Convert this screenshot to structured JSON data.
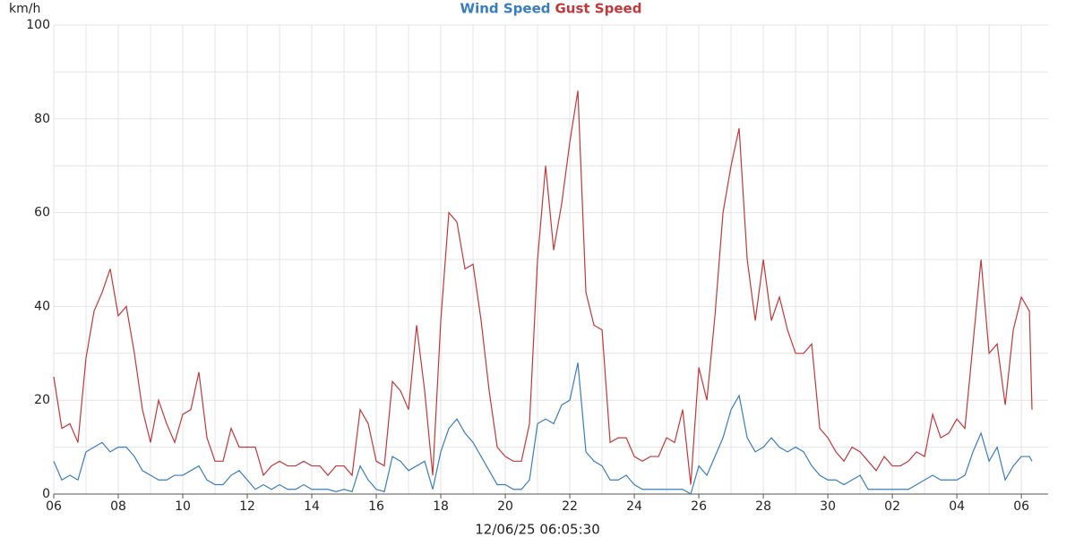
{
  "chart_data": {
    "type": "line",
    "legend": "top",
    "x_label": "12/06/25 06:05:30",
    "y_label": "km/h",
    "grid": true,
    "xlim": [
      0,
      30.83
    ],
    "ylim": [
      0,
      100
    ],
    "xticks": [
      {
        "value": 0,
        "label": "06"
      },
      {
        "value": 2,
        "label": "08"
      },
      {
        "value": 4,
        "label": "10"
      },
      {
        "value": 6,
        "label": "12"
      },
      {
        "value": 8,
        "label": "14"
      },
      {
        "value": 10,
        "label": "16"
      },
      {
        "value": 12,
        "label": "18"
      },
      {
        "value": 14,
        "label": "20"
      },
      {
        "value": 16,
        "label": "22"
      },
      {
        "value": 18,
        "label": "24"
      },
      {
        "value": 20,
        "label": "26"
      },
      {
        "value": 22,
        "label": "28"
      },
      {
        "value": 24,
        "label": "30"
      },
      {
        "value": 26,
        "label": "02"
      },
      {
        "value": 28,
        "label": "04"
      },
      {
        "value": 30,
        "label": "06"
      }
    ],
    "x_minor_ticks": [
      1,
      3,
      5,
      7,
      9,
      11,
      13,
      15,
      17,
      19,
      21,
      23,
      25,
      27,
      29
    ],
    "yticks": [
      0,
      20,
      40,
      60,
      80,
      100
    ],
    "y_minor_ticks": [
      10,
      30,
      50,
      70,
      90
    ],
    "x": [
      0,
      0.25,
      0.5,
      0.75,
      1,
      1.25,
      1.5,
      1.75,
      2,
      2.25,
      2.5,
      2.75,
      3,
      3.25,
      3.5,
      3.75,
      4,
      4.25,
      4.5,
      4.75,
      5,
      5.25,
      5.5,
      5.75,
      6,
      6.25,
      6.5,
      6.75,
      7,
      7.25,
      7.5,
      7.75,
      8,
      8.25,
      8.5,
      8.75,
      9,
      9.25,
      9.5,
      9.75,
      10,
      10.25,
      10.5,
      10.75,
      11,
      11.25,
      11.5,
      11.75,
      12,
      12.25,
      12.5,
      12.75,
      13,
      13.25,
      13.5,
      13.75,
      14,
      14.25,
      14.5,
      14.75,
      15,
      15.25,
      15.5,
      15.75,
      16,
      16.25,
      16.5,
      16.75,
      17,
      17.25,
      17.5,
      17.75,
      18,
      18.25,
      18.5,
      18.75,
      19,
      19.25,
      19.5,
      19.75,
      20,
      20.25,
      20.5,
      20.75,
      21,
      21.25,
      21.5,
      21.75,
      22,
      22.25,
      22.5,
      22.75,
      23,
      23.25,
      23.5,
      23.75,
      24,
      24.25,
      24.5,
      24.75,
      25,
      25.25,
      25.5,
      25.75,
      26,
      26.25,
      26.5,
      26.75,
      27,
      27.25,
      27.5,
      27.75,
      28,
      28.25,
      28.5,
      28.75,
      29,
      29.25,
      29.5,
      29.75,
      30,
      30.25,
      30.33
    ],
    "series": [
      {
        "name": "Wind Speed",
        "color": "#3a7dbf",
        "values": [
          7,
          3,
          4,
          3,
          9,
          10,
          11,
          9,
          10,
          10,
          8,
          5,
          4,
          3,
          3,
          4,
          4,
          5,
          6,
          3,
          2,
          2,
          4,
          5,
          3,
          1,
          2,
          1,
          2,
          1,
          1,
          2,
          1,
          1,
          1,
          0.5,
          1,
          0.5,
          6,
          3,
          1,
          0.5,
          8,
          7,
          5,
          6,
          7,
          1,
          9,
          14,
          16,
          13,
          11,
          8,
          5,
          2,
          2,
          1,
          1,
          3,
          15,
          16,
          15,
          19,
          20,
          28,
          9,
          7,
          6,
          3,
          3,
          4,
          2,
          1,
          1,
          1,
          1,
          1,
          1,
          0,
          6,
          4,
          8,
          12,
          18,
          21,
          12,
          9,
          10,
          12,
          10,
          9,
          10,
          9,
          6,
          4,
          3,
          3,
          2,
          3,
          4,
          1,
          1,
          1,
          1,
          1,
          1,
          2,
          3,
          4,
          3,
          3,
          3,
          4,
          9,
          13,
          7,
          10,
          3,
          6,
          8,
          8,
          7
        ]
      },
      {
        "name": "Gust Speed",
        "color": "#c0393b",
        "values": [
          25,
          14,
          15,
          11,
          29,
          39,
          43,
          48,
          38,
          40,
          30,
          18,
          11,
          20,
          15,
          11,
          17,
          18,
          26,
          12,
          7,
          7,
          14,
          10,
          10,
          10,
          4,
          6,
          7,
          6,
          6,
          7,
          6,
          6,
          4,
          6,
          6,
          4,
          18,
          15,
          7,
          6,
          24,
          22,
          18,
          36,
          22,
          4,
          37,
          60,
          58,
          48,
          49,
          37,
          22,
          10,
          8,
          7,
          7,
          15,
          50,
          70,
          52,
          62,
          75,
          86,
          43,
          36,
          35,
          11,
          12,
          12,
          8,
          7,
          8,
          8,
          12,
          11,
          18,
          2,
          27,
          20,
          38,
          60,
          70,
          78,
          50,
          37,
          50,
          37,
          42,
          35,
          30,
          30,
          32,
          14,
          12,
          9,
          7,
          10,
          9,
          7,
          5,
          8,
          6,
          6,
          7,
          9,
          8,
          17,
          12,
          13,
          16,
          14,
          32,
          50,
          30,
          32,
          19,
          35,
          42,
          39,
          18
        ]
      }
    ]
  }
}
